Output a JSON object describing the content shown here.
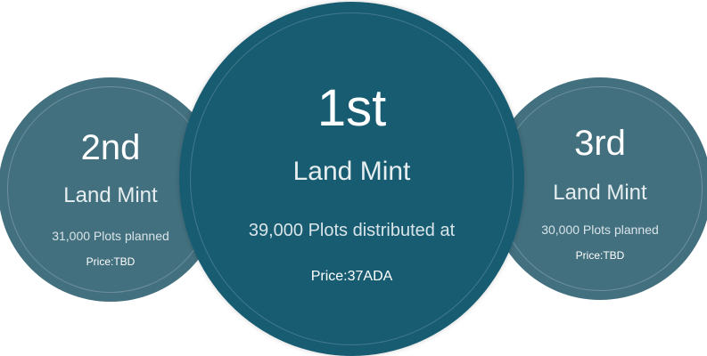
{
  "colors": {
    "center_circle": "#185c72",
    "side_circles": "#43707f",
    "text": "#ffffff"
  },
  "mints": [
    {
      "rank": "1st",
      "title": "Land Mint",
      "plots": "39,000 Plots distributed at",
      "price": "Price:37ADA"
    },
    {
      "rank": "2nd",
      "title": "Land Mint",
      "plots": "31,000 Plots planned",
      "price": "Price:TBD"
    },
    {
      "rank": "3rd",
      "title": "Land Mint",
      "plots": "30,000 Plots planned",
      "price": "Price:TBD"
    }
  ]
}
